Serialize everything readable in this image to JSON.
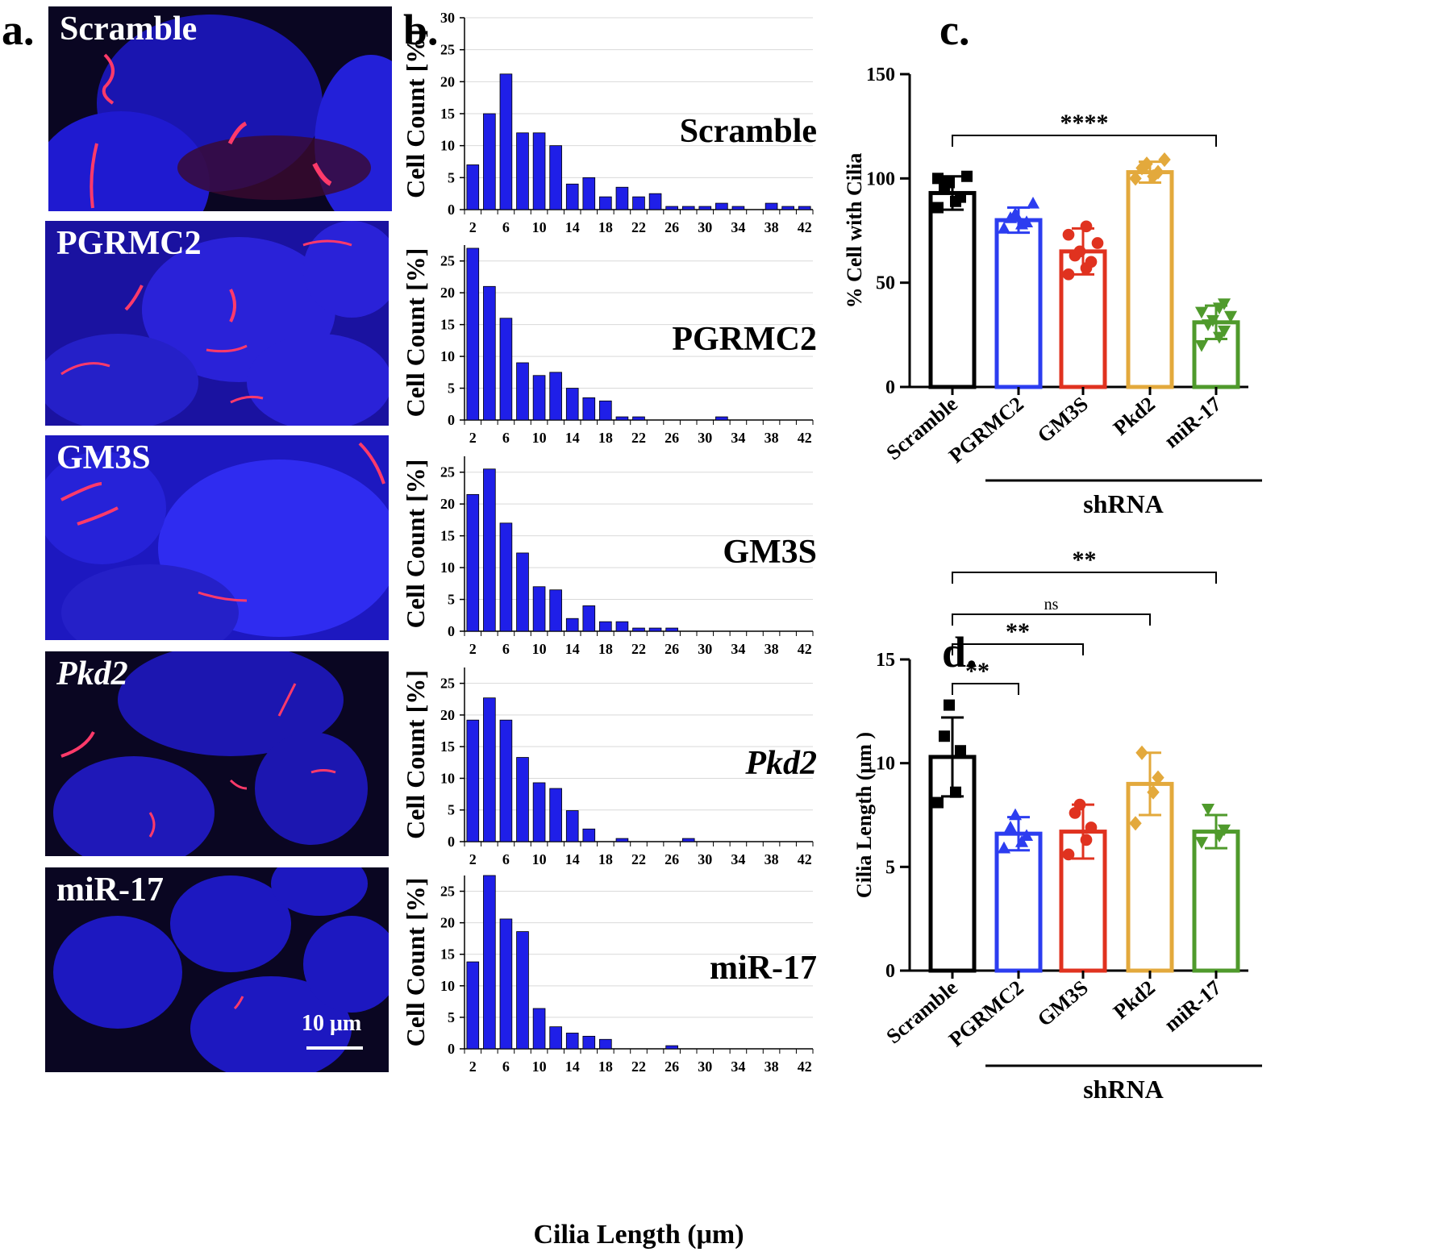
{
  "panels": {
    "a": {
      "letter": "a."
    },
    "b": {
      "letter": "b."
    },
    "c": {
      "letter": "c."
    },
    "d": {
      "letter": "d."
    }
  },
  "panel_a": {
    "images": [
      {
        "label": "Scramble",
        "italic": false
      },
      {
        "label": "PGRMC2",
        "italic": false
      },
      {
        "label": "GM3S",
        "italic": false
      },
      {
        "label": "Pkd2",
        "italic": true
      },
      {
        "label": "miR-17",
        "italic": false
      }
    ],
    "scale_bar": "10 μm",
    "colors": {
      "nucleus": "#1a1ad6",
      "cilia": "#ff2a55",
      "background": "#0a0620"
    }
  },
  "chart_data": [
    {
      "type": "bar",
      "panel": "b",
      "xlabel": "Cilia Length (μm)",
      "ylabel": "Cell Count [%]",
      "x_tick_labels": [
        "2",
        "6",
        "10",
        "14",
        "18",
        "22",
        "26",
        "30",
        "34",
        "38",
        "42"
      ],
      "bar_color": "#1f1fe8",
      "grid": true,
      "subplots": [
        {
          "name": "Scramble",
          "italic": false,
          "ylim": [
            0,
            30
          ],
          "yticks": [
            0,
            5,
            10,
            15,
            20,
            25,
            30
          ],
          "x": [
            2,
            4,
            6,
            8,
            10,
            12,
            14,
            16,
            18,
            20,
            22,
            24,
            26,
            28,
            30,
            32,
            34,
            36,
            38,
            40,
            42
          ],
          "values": [
            7,
            15,
            21.2,
            12,
            12,
            10,
            4,
            5,
            2,
            3.5,
            2,
            2.5,
            0.5,
            0.5,
            0.5,
            1,
            0.5,
            0,
            1,
            0.5,
            0.5
          ]
        },
        {
          "name": "PGRMC2",
          "italic": false,
          "ylim": [
            0,
            27.5
          ],
          "yticks": [
            0,
            5,
            10,
            15,
            20,
            25
          ],
          "x": [
            2,
            4,
            6,
            8,
            10,
            12,
            14,
            16,
            18,
            20,
            22,
            24,
            26,
            28,
            30,
            32,
            34,
            36,
            38,
            40,
            42
          ],
          "values": [
            27,
            21,
            16,
            9,
            7,
            7.5,
            5,
            3.5,
            3,
            0.5,
            0.5,
            0,
            0,
            0,
            0,
            0.5,
            0,
            0,
            0,
            0,
            0
          ]
        },
        {
          "name": "GM3S",
          "italic": false,
          "ylim": [
            0,
            27.5
          ],
          "yticks": [
            0,
            5,
            10,
            15,
            20,
            25
          ],
          "x": [
            2,
            4,
            6,
            8,
            10,
            12,
            14,
            16,
            18,
            20,
            22,
            24,
            26,
            28,
            30,
            32,
            34,
            36,
            38,
            40,
            42
          ],
          "values": [
            21.5,
            25.5,
            17,
            12.3,
            7,
            6.5,
            2,
            4,
            1.5,
            1.5,
            0.5,
            0.5,
            0.5,
            0,
            0,
            0,
            0,
            0,
            0,
            0,
            0
          ]
        },
        {
          "name": "Pkd2",
          "italic": true,
          "ylim": [
            0,
            27.5
          ],
          "yticks": [
            0,
            5,
            10,
            15,
            20,
            25
          ],
          "x": [
            2,
            4,
            6,
            8,
            10,
            12,
            14,
            16,
            18,
            20,
            22,
            24,
            26,
            28,
            30,
            32,
            34,
            36,
            38,
            40,
            42
          ],
          "values": [
            19.2,
            22.7,
            19.2,
            13.3,
            9.3,
            8.4,
            4.9,
            2,
            0,
            0.5,
            0,
            0,
            0,
            0.5,
            0,
            0,
            0,
            0,
            0,
            0,
            0
          ]
        },
        {
          "name": "miR-17",
          "italic": false,
          "ylim": [
            0,
            27.5
          ],
          "yticks": [
            0,
            5,
            10,
            15,
            20,
            25
          ],
          "x": [
            2,
            4,
            6,
            8,
            10,
            12,
            14,
            16,
            18,
            20,
            22,
            24,
            26,
            28,
            30,
            32,
            34,
            36,
            38,
            40,
            42
          ],
          "values": [
            13.8,
            27.5,
            20.6,
            18.6,
            6.4,
            3.5,
            2.5,
            2,
            1.5,
            0,
            0,
            0,
            0.5,
            0,
            0,
            0,
            0,
            0,
            0,
            0,
            0
          ]
        }
      ]
    },
    {
      "type": "bar",
      "panel": "c",
      "ylabel": "% Cell with Cilia",
      "ylim": [
        0,
        150
      ],
      "yticks": [
        0,
        50,
        100,
        150
      ],
      "categories": [
        "Scramble",
        "PGRMC2",
        "GM3S",
        "Pkd2",
        "miR-17"
      ],
      "group_label": "shRNA",
      "means": [
        93,
        80,
        65,
        103,
        31
      ],
      "sd": [
        8,
        6,
        11,
        5,
        8
      ],
      "colors": [
        "#000000",
        "#2c3df0",
        "#e0321f",
        "#e3a93c",
        "#4f9a2c"
      ],
      "markers": [
        "square",
        "triangle-up",
        "circle",
        "diamond",
        "triangle-down"
      ],
      "points": [
        [
          86,
          89,
          91,
          96,
          98,
          101,
          100
        ],
        [
          76,
          78,
          79,
          81,
          83,
          88
        ],
        [
          54,
          57,
          60,
          63,
          65,
          69,
          73,
          77
        ],
        [
          100,
          101,
          103,
          105,
          107,
          109
        ],
        [
          20,
          24,
          27,
          30,
          32,
          34,
          36,
          38,
          40
        ]
      ],
      "significance": [
        {
          "from": 0,
          "to": 4,
          "label": "****"
        }
      ]
    },
    {
      "type": "bar",
      "panel": "d",
      "ylabel": "Cilia Length (μm )",
      "ylim": [
        0,
        15
      ],
      "yticks": [
        0,
        5,
        10,
        15
      ],
      "categories": [
        "Scramble",
        "PGRMC2",
        "GM3S",
        "Pkd2",
        "miR-17"
      ],
      "group_label": "shRNA",
      "means": [
        10.3,
        6.6,
        6.7,
        9.0,
        6.7
      ],
      "sd": [
        1.9,
        0.8,
        1.3,
        1.5,
        0.8
      ],
      "colors": [
        "#000000",
        "#2c3df0",
        "#e0321f",
        "#e3a93c",
        "#4f9a2c"
      ],
      "markers": [
        "square",
        "triangle-up",
        "circle",
        "diamond",
        "triangle-down"
      ],
      "points": [
        [
          8.1,
          8.6,
          10.6,
          11.3,
          12.8
        ],
        [
          5.9,
          6.2,
          6.5,
          6.9,
          7.5
        ],
        [
          5.6,
          6.3,
          6.9,
          7.6,
          8.0
        ],
        [
          7.1,
          8.6,
          9.3,
          10.5
        ],
        [
          6.2,
          6.5,
          6.8,
          7.8
        ]
      ],
      "significance": [
        {
          "from": 0,
          "to": 1,
          "label": "**"
        },
        {
          "from": 0,
          "to": 2,
          "label": "**"
        },
        {
          "from": 0,
          "to": 3,
          "label": "ns"
        },
        {
          "from": 0,
          "to": 4,
          "label": "**"
        }
      ]
    }
  ]
}
